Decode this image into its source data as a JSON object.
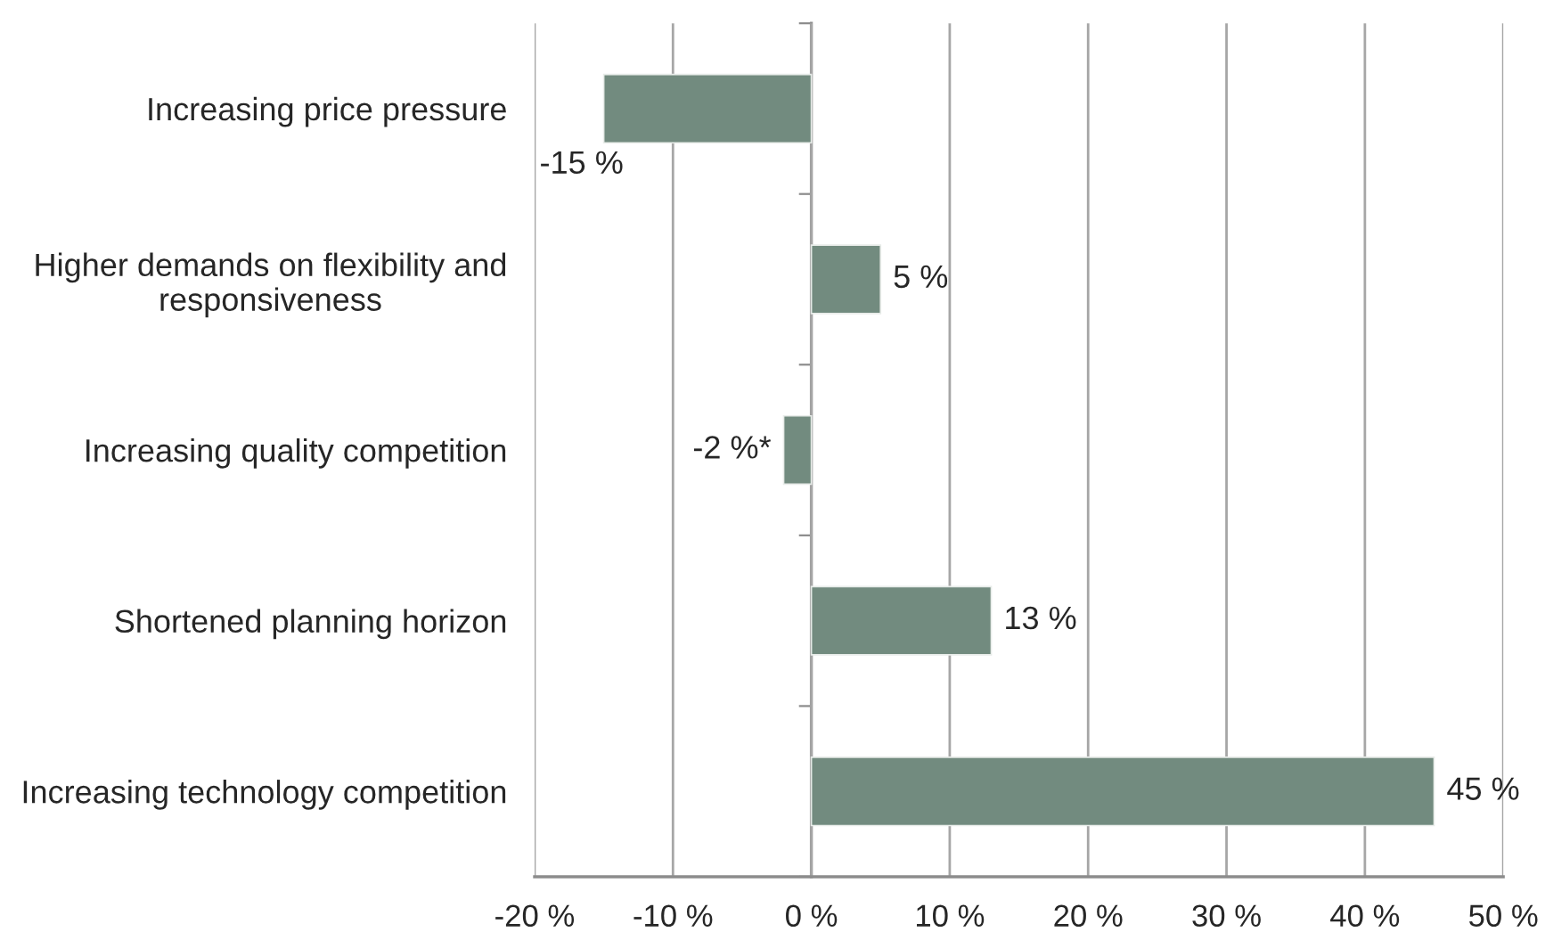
{
  "chart_data": {
    "type": "bar",
    "orientation": "horizontal",
    "categories": [
      "Increasing price pressure",
      "Higher demands on flexibility and\nresponsiveness",
      "Increasing quality competition",
      "Shortened planning horizon",
      "Increasing technology competition"
    ],
    "values": [
      -15,
      5,
      -2,
      13,
      45
    ],
    "color": "#728b7f",
    "value_labels": [
      "-15 %",
      "5 %",
      "-2 %*",
      "13 %",
      "45 %"
    ],
    "xlim": [
      -20,
      50
    ],
    "xticks": [
      {
        "value": -20,
        "label": "-20 %"
      },
      {
        "value": -10,
        "label": "-10 %"
      },
      {
        "value": 0,
        "label": "0 %"
      },
      {
        "value": 10,
        "label": "10 %"
      },
      {
        "value": 20,
        "label": "20 %"
      },
      {
        "value": 30,
        "label": "30 %"
      },
      {
        "value": 40,
        "label": "40 %"
      },
      {
        "value": 50,
        "label": "50 %"
      }
    ],
    "grid": "x"
  }
}
